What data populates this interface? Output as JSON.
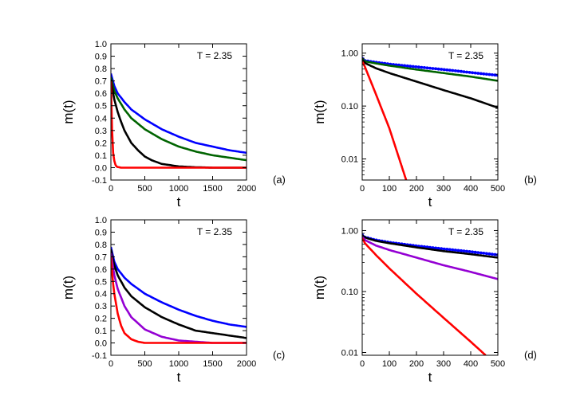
{
  "chart_data": [
    {
      "panel_label": "(a)",
      "type": "line",
      "annotation": "T = 2.35",
      "xlabel": "t",
      "ylabel": "m(t)",
      "xlim": [
        0,
        2000
      ],
      "ylim": [
        -0.1,
        1.0
      ],
      "yscale": "linear",
      "xticks": [
        "0",
        "500",
        "1000",
        "1500",
        "2000"
      ],
      "yticks": [
        "-0.1",
        "0.0",
        "0.1",
        "0.2",
        "0.3",
        "0.4",
        "0.5",
        "0.6",
        "0.7",
        "0.8",
        "0.9",
        "1.0"
      ],
      "grid": false,
      "series": [
        {
          "color": "#0000ff",
          "x": [
            0,
            50,
            100,
            200,
            300,
            500,
            750,
            1000,
            1250,
            1500,
            1750,
            2000
          ],
          "values": [
            0.76,
            0.66,
            0.6,
            0.53,
            0.47,
            0.39,
            0.31,
            0.25,
            0.2,
            0.17,
            0.14,
            0.12
          ]
        },
        {
          "color": "#006400",
          "x": [
            0,
            50,
            100,
            200,
            300,
            500,
            750,
            1000,
            1250,
            1500,
            1750,
            2000
          ],
          "values": [
            0.73,
            0.62,
            0.56,
            0.47,
            0.4,
            0.31,
            0.23,
            0.17,
            0.13,
            0.1,
            0.08,
            0.06
          ]
        },
        {
          "color": "#000000",
          "x": [
            0,
            50,
            100,
            150,
            200,
            300,
            400,
            500,
            600,
            750,
            1000,
            1250,
            1500,
            2000
          ],
          "values": [
            0.71,
            0.55,
            0.45,
            0.37,
            0.3,
            0.2,
            0.14,
            0.09,
            0.06,
            0.03,
            0.01,
            0.003,
            0.0,
            0.0
          ]
        },
        {
          "color": "#ff0000",
          "x": [
            0,
            10,
            20,
            30,
            40,
            60,
            80,
            100,
            150,
            200,
            500,
            1000,
            2000
          ],
          "values": [
            0.7,
            0.45,
            0.25,
            0.14,
            0.08,
            0.03,
            0.01,
            0.005,
            0.0,
            0.0,
            0.0,
            0.0,
            0.0
          ]
        }
      ]
    },
    {
      "panel_label": "(b)",
      "type": "line",
      "annotation": "T = 2.35",
      "xlabel": "t",
      "ylabel": "m(t)",
      "xlim": [
        0,
        500
      ],
      "ylim": [
        0.004,
        1.5
      ],
      "yscale": "log",
      "xticks": [
        "0",
        "100",
        "200",
        "300",
        "400",
        "500"
      ],
      "yticks": [
        "0.01",
        "0.10",
        "1.00"
      ],
      "grid": false,
      "series": [
        {
          "color": "#0000ff",
          "marker": "dot",
          "x": [
            0,
            10,
            50,
            100,
            200,
            300,
            400,
            500
          ],
          "values": [
            0.8,
            0.72,
            0.67,
            0.62,
            0.55,
            0.49,
            0.43,
            0.38
          ]
        },
        {
          "color": "#006400",
          "x": [
            0,
            10,
            50,
            100,
            200,
            300,
            400,
            500
          ],
          "values": [
            0.78,
            0.7,
            0.64,
            0.58,
            0.49,
            0.42,
            0.36,
            0.3
          ]
        },
        {
          "color": "#000000",
          "x": [
            0,
            10,
            50,
            100,
            200,
            300,
            400,
            500
          ],
          "values": [
            0.75,
            0.65,
            0.52,
            0.42,
            0.29,
            0.2,
            0.14,
            0.093
          ]
        },
        {
          "color": "#ff0000",
          "x": [
            0,
            10,
            50,
            100,
            162
          ],
          "values": [
            0.7,
            0.55,
            0.17,
            0.038,
            0.004
          ]
        }
      ]
    },
    {
      "panel_label": "(c)",
      "type": "line",
      "annotation": "T = 2.35",
      "xlabel": "t",
      "ylabel": "m(t)",
      "xlim": [
        0,
        2000
      ],
      "ylim": [
        -0.1,
        1.0
      ],
      "yscale": "linear",
      "xticks": [
        "0",
        "500",
        "1000",
        "1500",
        "2000"
      ],
      "yticks": [
        "-0.1",
        "0.0",
        "0.1",
        "0.2",
        "0.3",
        "0.4",
        "0.5",
        "0.6",
        "0.7",
        "0.8",
        "0.9",
        "1.0"
      ],
      "grid": false,
      "series": [
        {
          "color": "#0000ff",
          "x": [
            0,
            50,
            100,
            200,
            300,
            500,
            750,
            1000,
            1250,
            1500,
            1750,
            2000
          ],
          "values": [
            0.78,
            0.66,
            0.6,
            0.53,
            0.48,
            0.4,
            0.33,
            0.27,
            0.22,
            0.18,
            0.15,
            0.13
          ]
        },
        {
          "color": "#000000",
          "x": [
            0,
            50,
            100,
            200,
            300,
            500,
            750,
            1000,
            1250,
            1500,
            1750,
            2000
          ],
          "values": [
            0.76,
            0.63,
            0.55,
            0.45,
            0.38,
            0.29,
            0.21,
            0.15,
            0.1,
            0.08,
            0.06,
            0.04
          ]
        },
        {
          "color": "#9400d3",
          "x": [
            0,
            50,
            100,
            200,
            300,
            500,
            750,
            1000,
            1250,
            1500,
            2000
          ],
          "values": [
            0.73,
            0.55,
            0.44,
            0.3,
            0.21,
            0.11,
            0.05,
            0.02,
            0.01,
            0.0,
            0.0
          ]
        },
        {
          "color": "#ff0000",
          "x": [
            0,
            25,
            50,
            100,
            150,
            200,
            300,
            400,
            500,
            750,
            1000,
            2000
          ],
          "values": [
            0.7,
            0.52,
            0.4,
            0.24,
            0.14,
            0.08,
            0.03,
            0.01,
            0.0,
            0.0,
            0.0,
            0.0
          ]
        }
      ]
    },
    {
      "panel_label": "(d)",
      "type": "line",
      "annotation": "T = 2.35",
      "xlabel": "t",
      "ylabel": "m(t)",
      "xlim": [
        0,
        500
      ],
      "ylim": [
        0.009,
        1.5
      ],
      "yscale": "log",
      "xticks": [
        "0",
        "100",
        "200",
        "300",
        "400",
        "500"
      ],
      "yticks": [
        "0.01",
        "0.10",
        "1.00"
      ],
      "grid": false,
      "series": [
        {
          "color": "#0000ff",
          "marker": "dot",
          "x": [
            0,
            10,
            50,
            100,
            200,
            300,
            400,
            500
          ],
          "values": [
            0.85,
            0.78,
            0.7,
            0.64,
            0.56,
            0.5,
            0.45,
            0.4
          ]
        },
        {
          "color": "#000000",
          "x": [
            0,
            10,
            50,
            100,
            200,
            300,
            400,
            500
          ],
          "values": [
            0.84,
            0.77,
            0.68,
            0.62,
            0.53,
            0.46,
            0.41,
            0.36
          ]
        },
        {
          "color": "#9400d3",
          "x": [
            0,
            10,
            50,
            100,
            200,
            300,
            400,
            500
          ],
          "values": [
            0.8,
            0.7,
            0.57,
            0.48,
            0.36,
            0.27,
            0.21,
            0.16
          ]
        },
        {
          "color": "#ff0000",
          "x": [
            0,
            10,
            50,
            100,
            200,
            300,
            400,
            455
          ],
          "values": [
            0.75,
            0.62,
            0.4,
            0.24,
            0.092,
            0.037,
            0.015,
            0.009
          ]
        }
      ]
    }
  ]
}
